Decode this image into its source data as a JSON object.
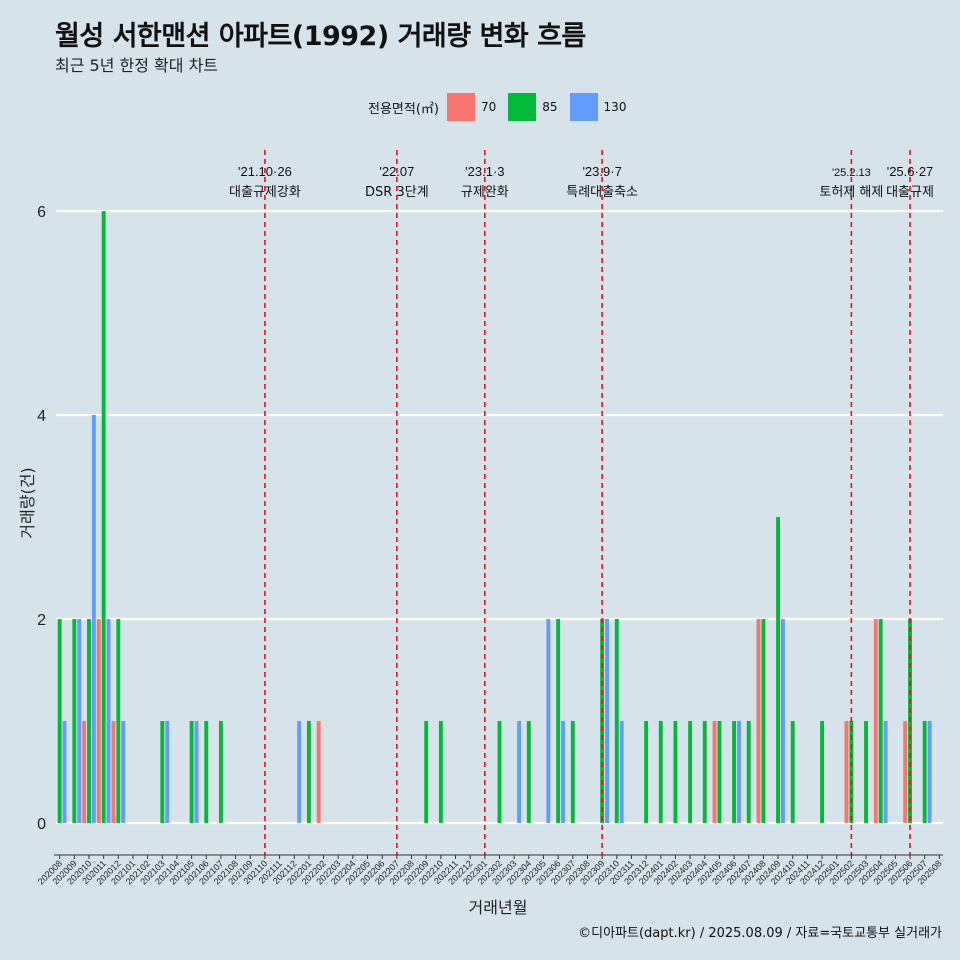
{
  "title": "월성 서한맨션 아파트(1992) 거래량 변화 흐름",
  "subtitle": "최근 5년 한정 확대 차트",
  "caption": "©디아파트(dapt.kr) / 2025.08.09 / 자료=국토교통부 실거래가",
  "legend": {
    "title": "전용면적(㎡)",
    "items": [
      {
        "label": "70",
        "color": "#f8766d"
      },
      {
        "label": "85",
        "color": "#00ba38"
      },
      {
        "label": "130",
        "color": "#619cff"
      }
    ]
  },
  "chart_data": {
    "type": "bar",
    "xlabel": "거래년월",
    "ylabel": "거래량(건)",
    "ylim": [
      0,
      6
    ],
    "yticks": [
      0,
      2,
      4,
      6
    ],
    "categories": [
      "202008",
      "202009",
      "202010",
      "202011",
      "202012",
      "202101",
      "202102",
      "202103",
      "202104",
      "202105",
      "202106",
      "202107",
      "202108",
      "202109",
      "202110",
      "202111",
      "202112",
      "202201",
      "202202",
      "202203",
      "202204",
      "202205",
      "202206",
      "202207",
      "202208",
      "202209",
      "202210",
      "202211",
      "202212",
      "202301",
      "202302",
      "202303",
      "202304",
      "202305",
      "202306",
      "202307",
      "202308",
      "202309",
      "202310",
      "202311",
      "202312",
      "202401",
      "202402",
      "202403",
      "202404",
      "202405",
      "202406",
      "202407",
      "202408",
      "202409",
      "202410",
      "202411",
      "202412",
      "202501",
      "202502",
      "202503",
      "202504",
      "202505",
      "202506",
      "202507",
      "202508"
    ],
    "series": [
      {
        "name": "70",
        "color": "#f8766d",
        "values": [
          0,
          0,
          1,
          2,
          1,
          0,
          0,
          0,
          0,
          0,
          0,
          0,
          0,
          0,
          0,
          0,
          0,
          0,
          1,
          0,
          0,
          0,
          0,
          0,
          0,
          0,
          0,
          0,
          0,
          0,
          0,
          0,
          0,
          0,
          0,
          0,
          0,
          0,
          0,
          0,
          0,
          0,
          0,
          0,
          0,
          1,
          0,
          0,
          2,
          0,
          0,
          0,
          0,
          0,
          1,
          0,
          2,
          0,
          1,
          0,
          0
        ]
      },
      {
        "name": "85",
        "color": "#00ba38",
        "values": [
          2,
          2,
          2,
          6,
          2,
          0,
          0,
          1,
          0,
          1,
          1,
          1,
          0,
          0,
          0,
          0,
          0,
          1,
          0,
          0,
          0,
          0,
          0,
          0,
          0,
          1,
          1,
          0,
          0,
          0,
          1,
          0,
          1,
          0,
          2,
          1,
          0,
          2,
          2,
          0,
          1,
          1,
          1,
          1,
          1,
          1,
          1,
          1,
          2,
          3,
          1,
          0,
          1,
          0,
          1,
          1,
          2,
          0,
          2,
          1,
          0
        ]
      },
      {
        "name": "130",
        "color": "#619cff",
        "values": [
          1,
          2,
          4,
          2,
          1,
          0,
          0,
          1,
          0,
          1,
          0,
          0,
          0,
          0,
          0,
          0,
          1,
          0,
          0,
          0,
          0,
          0,
          0,
          0,
          0,
          0,
          0,
          0,
          0,
          0,
          0,
          1,
          0,
          2,
          1,
          0,
          0,
          2,
          1,
          0,
          0,
          0,
          0,
          0,
          0,
          0,
          1,
          0,
          0,
          2,
          0,
          0,
          0,
          0,
          0,
          0,
          1,
          0,
          0,
          1,
          0
        ]
      }
    ],
    "events": [
      {
        "date_label": "'21.10·26",
        "text": "대출규제강화",
        "category": "202110"
      },
      {
        "date_label": "'22.07",
        "text": "DSR 3단계",
        "category": "202207"
      },
      {
        "date_label": "'23.1·3",
        "text": "규제완화",
        "category": "202301"
      },
      {
        "date_label": "'23.9·7",
        "text": "특례대출축소",
        "category": "202309"
      },
      {
        "date_label": "'25.2.13",
        "text": "토허제 해제",
        "category": "202502"
      },
      {
        "date_label": "'25.6·27",
        "text": "대출규제",
        "category": "202506"
      }
    ]
  }
}
